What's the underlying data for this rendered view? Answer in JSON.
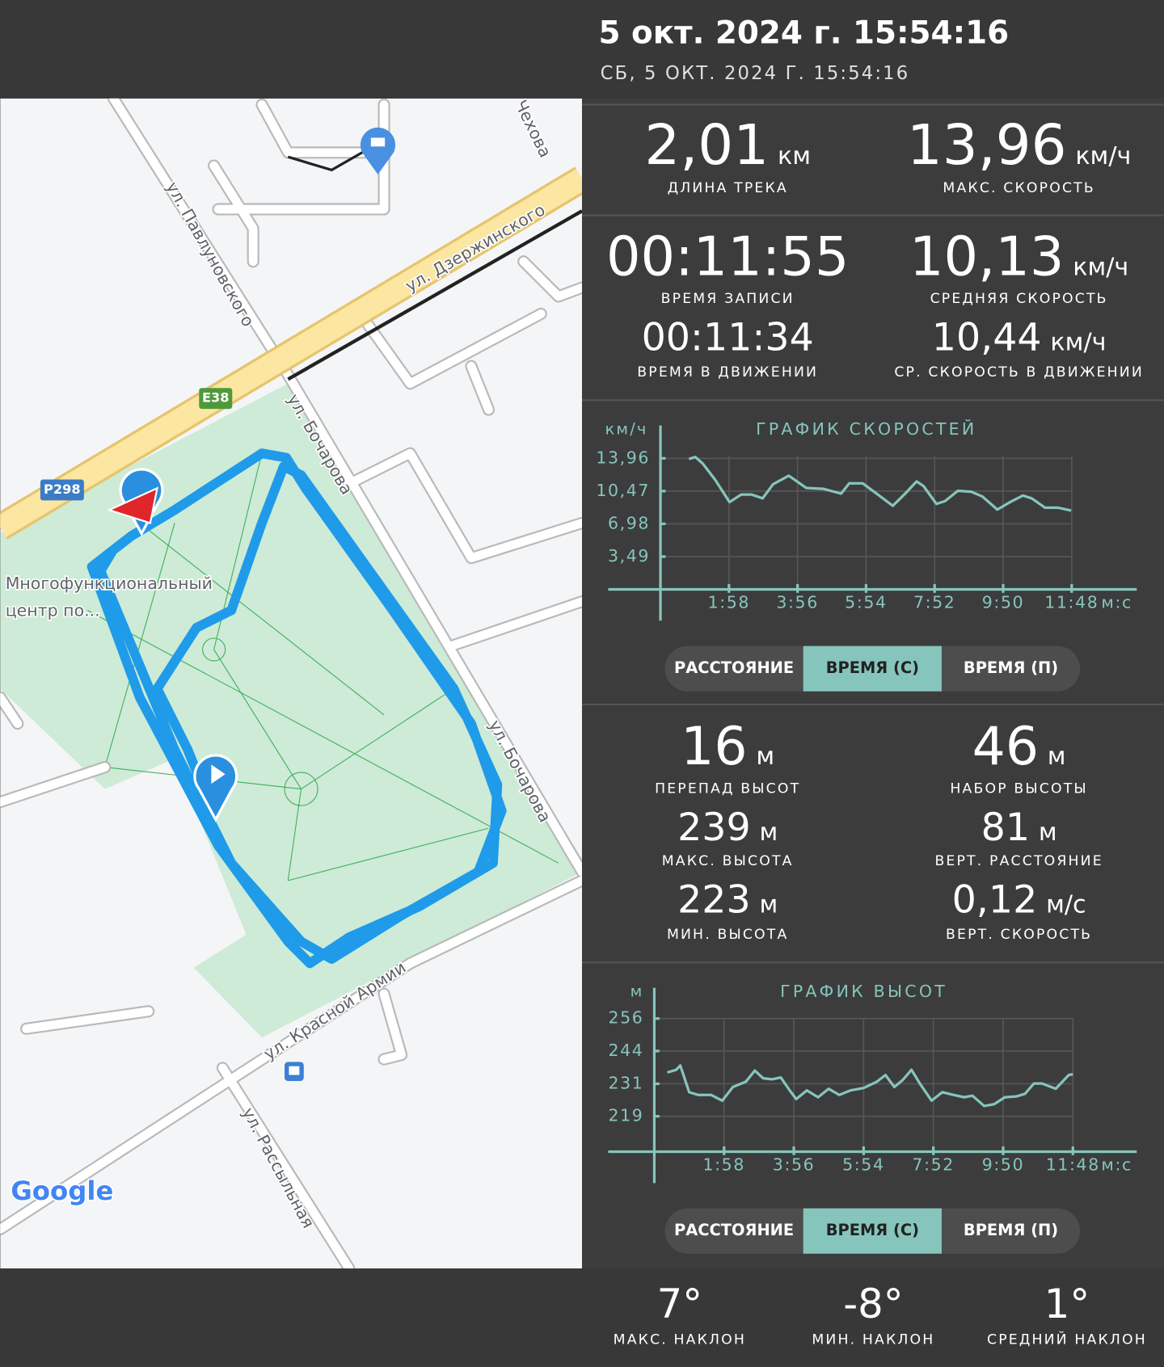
{
  "header": {
    "title": "5 окт. 2024 г. 15:54:16",
    "subtitle": "СБ, 5 ОКТ. 2024 Г. 15:54:16"
  },
  "map": {
    "streets": [
      "ул. Дзержинского",
      "ул. Павлуновского",
      "ул. Бочарова",
      "ул. Бочарова",
      "ул. Красной Армии",
      "ул. Рассыльная",
      "Чехова"
    ],
    "road_badges": [
      "E38",
      "Р298"
    ],
    "poi": [
      "Многофункциональный",
      "центр по..."
    ],
    "logo": "Google"
  },
  "track_stats": [
    {
      "value": "2,01",
      "unit": "км",
      "label": "ДЛИНА ТРЕКА"
    },
    {
      "value": "13,96",
      "unit": "км/ч",
      "label": "МАКС. СКОРОСТЬ"
    },
    {
      "value": "00:11:55",
      "label": "ВРЕМЯ ЗАПИСИ"
    },
    {
      "value": "10,13",
      "unit": "км/ч",
      "label": "СРЕДНЯЯ СКОРОСТЬ"
    },
    {
      "value": "00:11:34",
      "label": "ВРЕМЯ В ДВИЖЕНИИ"
    },
    {
      "value": "10,44",
      "unit": "км/ч",
      "label": "СР. СКОРОСТЬ В ДВИЖЕНИИ"
    }
  ],
  "speed_chart": {
    "title": "ГРАФИК СКОРОСТЕЙ",
    "y_unit": "км/ч",
    "x_unit": "м:с",
    "color": "#86c5bc",
    "x": [
      49,
      60,
      73,
      94,
      119,
      139,
      157,
      176,
      194,
      221,
      251,
      281,
      311,
      325,
      348,
      370,
      400,
      423,
      441,
      453,
      475,
      490,
      512,
      535,
      554,
      580,
      602,
      624,
      639,
      662,
      684,
      707
    ],
    "values": [
      13.9,
      14.1,
      13.4,
      11.7,
      9.3,
      10.1,
      10.1,
      9.7,
      11.2,
      12.1,
      10.8,
      10.7,
      10.2,
      11.3,
      11.3,
      10.3,
      8.9,
      10.3,
      11.5,
      11.0,
      9.1,
      9.4,
      10.5,
      10.4,
      9.9,
      8.5,
      9.3,
      10.0,
      9.7,
      8.7,
      8.7,
      8.4
    ],
    "xlim": [
      -90,
      820
    ],
    "ylim": [
      0,
      17
    ],
    "xticks": [
      {
        "value": 118,
        "label": "1:58"
      },
      {
        "value": 236,
        "label": "3:56"
      },
      {
        "value": 354,
        "label": "5:54"
      },
      {
        "value": 472,
        "label": "7:52"
      },
      {
        "value": 590,
        "label": "9:50"
      },
      {
        "value": 708,
        "label": "11:48"
      }
    ],
    "yticks": [
      {
        "value": 3.49,
        "label": "3,49"
      },
      {
        "value": 6.98,
        "label": "6,98"
      },
      {
        "value": 10.47,
        "label": "10,47"
      },
      {
        "value": 13.96,
        "label": "13,96"
      }
    ],
    "modes": [
      "РАССТОЯНИЕ",
      "ВРЕМЯ (С)",
      "ВРЕМЯ (П)"
    ],
    "selected_mode": 1
  },
  "elevation_stats": [
    {
      "value": "16",
      "unit": "м",
      "label": "ПЕРЕПАД ВЫСОТ"
    },
    {
      "value": "46",
      "unit": "м",
      "label": "НАБОР ВЫСОТЫ"
    },
    {
      "value": "239",
      "unit": "м",
      "label": "МАКС. ВЫСОТА"
    },
    {
      "value": "81",
      "unit": "м",
      "label": "ВЕРТ. РАССТОЯНИЕ"
    },
    {
      "value": "223",
      "unit": "м",
      "label": "МИН. ВЫСОТА"
    },
    {
      "value": "0,12",
      "unit": "м/с",
      "label": "ВЕРТ. СКОРОСТЬ"
    }
  ],
  "elevation_chart": {
    "title": "ГРАФИК ВЫСОТ",
    "y_unit": "м",
    "x_unit": "м:с",
    "color": "#86c5bc",
    "x": [
      22,
      37,
      44,
      59,
      74,
      96,
      115,
      133,
      155,
      170,
      184,
      199,
      214,
      229,
      240,
      258,
      277,
      295,
      313,
      332,
      354,
      376,
      391,
      406,
      420,
      435,
      450,
      469,
      487,
      506,
      524,
      538,
      558,
      575,
      593,
      612,
      627,
      642,
      656,
      679,
      701,
      708
    ],
    "values": [
      235.6,
      236.6,
      238.2,
      228.1,
      227.1,
      227.1,
      224.9,
      230.1,
      232.1,
      236.3,
      233.4,
      233.0,
      233.7,
      228.8,
      225.5,
      228.8,
      226.2,
      229.4,
      227.1,
      228.8,
      229.7,
      232.0,
      234.6,
      230.1,
      232.7,
      236.6,
      231.1,
      224.9,
      228.1,
      227.1,
      226.2,
      226.8,
      222.9,
      223.6,
      226.2,
      226.5,
      227.5,
      231.4,
      231.4,
      229.4,
      234.6,
      234.9
    ],
    "xlim": [
      -78,
      816
    ],
    "ylim": [
      205.6,
      266
    ],
    "xticks": [
      {
        "value": 118,
        "label": "1:58"
      },
      {
        "value": 236,
        "label": "3:56"
      },
      {
        "value": 354,
        "label": "5:54"
      },
      {
        "value": 472,
        "label": "7:52"
      },
      {
        "value": 590,
        "label": "9:50"
      },
      {
        "value": 708,
        "label": "11:48"
      }
    ],
    "yticks": [
      {
        "value": 219,
        "label": "219"
      },
      {
        "value": 231.3,
        "label": "231"
      },
      {
        "value": 243.7,
        "label": "244"
      },
      {
        "value": 256,
        "label": "256"
      }
    ],
    "modes": [
      "РАССТОЯНИЕ",
      "ВРЕМЯ (С)",
      "ВРЕМЯ (П)"
    ],
    "selected_mode": 1
  },
  "slope_stats": [
    {
      "value": "7°",
      "label": "МАКС. НАКЛОН"
    },
    {
      "value": "-8°",
      "label": "МИН. НАКЛОН"
    },
    {
      "value": "1°",
      "label": "СРЕДНИЙ НАКЛОН"
    }
  ]
}
